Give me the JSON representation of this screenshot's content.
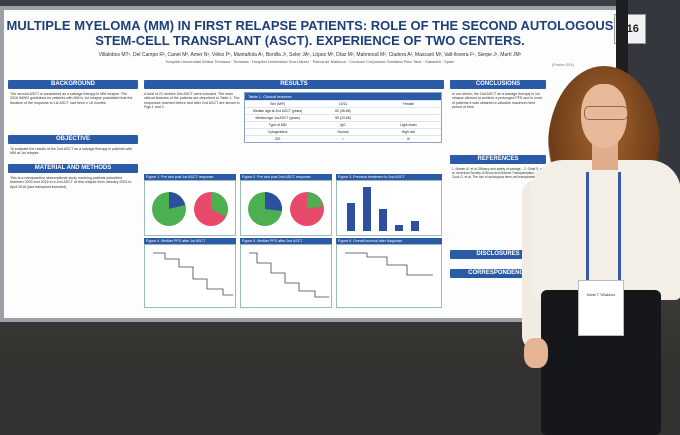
{
  "board_number": "116",
  "poster": {
    "title": "MULTIPLE MYELOMA (MM) IN FIRST RELAPSE PATIENTS: ROLE OF THE SECOND AUTOLOGOUS STEM-CELL TRANSPLANT (ASCT). EXPERIENCE OF TWO CENTERS.",
    "authors": "Villalobos MT¹, Del Campo R², Canet M², Amer N¹, Vélez P¹, Muntañola A¹, Bonilla J¹, Soler JA¹, López M², Díaz M², Mahmoud M², Cladera A², Mascaró M², Vall-llovera F¹, Sierpe J¹, Martí JM¹",
    "institutions": "Hospital Universitari Mútua Terrassa · Terrassa · Hospital Universitari Son Llàtzer · Palma de Mallorca · Consorci Corporació Sanitària Parc Taulí · Sabadell · Spain",
    "poster_id": "(Poster 001)",
    "sections": {
      "background": "BACKGROUND",
      "objective": "OBJECTIVE",
      "material": "MATERIAL AND METHODS",
      "results": "RESULTS",
      "conclusions": "CONCLUSIONS",
      "references": "REFERENCES",
      "disclosures": "DISCLOSURES",
      "correspondence": "CORRESPONDENCE"
    },
    "background_text": "The second ASCT is considered as a salvage therapy in MM relapse. The 2016 IMWG guidelines for patients with MM in 1st relapse postulated that the duration of the response to 1st ASCT had been ≥ 18 months.",
    "objective_text": "To evaluate the results of the 2nd ASCT as a salvage therapy in patients with MM at 1st relapse.",
    "methods_text": "This is a retrospective observational study involving patients submitted between 2003 and 2016 to a 2nd ASCT at first relapse from January 2003 to April 2016 (last transplant included).",
    "results_text": "A total of 21 receive 2nd ASCT were included. The main clinical features of the patients are described in Table 1. The responses reached before and after 2nd ASCT are shown in Figs 1 and 2.",
    "table_title": "Table 1. Clinical features",
    "table_rows": [
      [
        "Sex (M/F)",
        "10/11",
        "Female"
      ],
      [
        "Median age at 2nd ASCT (years)",
        "60 (36-68)",
        ""
      ],
      [
        "Median age 1st ASCT (years)",
        "55 (33-65)",
        ""
      ],
      [
        "Type of MM",
        "IgG",
        "Light chain"
      ],
      [
        "Cytogenetics",
        "Normal",
        "High risk"
      ],
      [
        "ISS",
        "I",
        "III"
      ]
    ],
    "fig_captions": [
      "Figure 1. Pre and post 1st ASCT response",
      "Figure 2. Pre and post 2nd ASCT response",
      "Figure 3. Previous treatment to 2nd ASCT",
      "Figure 4. Median PFS after 1st ASCT",
      "Figure 5. Median PFS after 2nd ASCT",
      "Figure 6. Overall survival after diagnosis"
    ],
    "conclusion_text": "In our series, the 2nd ASCT as a salvage therapy in 1st relapse allowed to achieve a prolonged PFS and in most of patients it was obtained a valuable maximum time period of time.",
    "references_text": "1. Manier M, et al. Efficacy and safety of salvage... 2. Giralt S, et al. American Society of Blood and Marrow Transplantation... 3. Cook G, et al. The role of autologous stem-cell transplantation..."
  },
  "badge_text": "Maria T. Villalobos",
  "colors": {
    "poster_header": "#2b5aa6",
    "title": "#1d3f7a",
    "pie_green": "#4caf50",
    "pie_blue": "#2c4fa0",
    "pie_pink": "#e84a6b"
  }
}
